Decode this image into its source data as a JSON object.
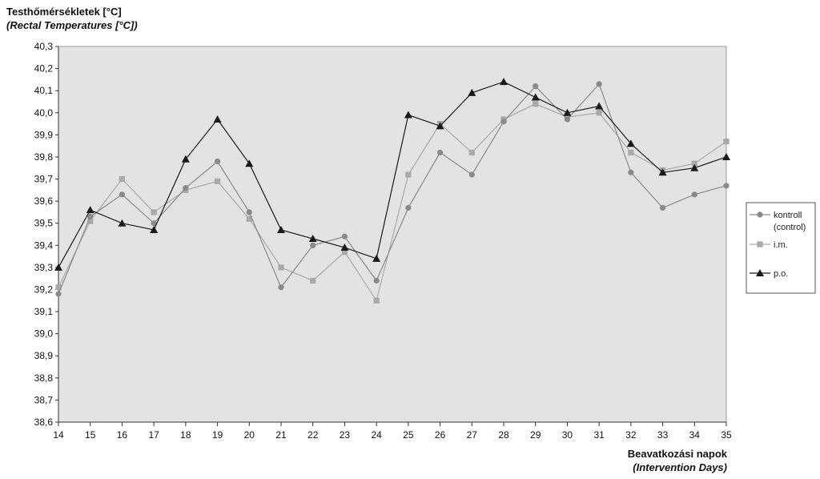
{
  "chart_data": {
    "type": "line",
    "ylabel": "Testhőmérsékletek [°C]",
    "ylabel_en": "(Rectal Temperatures [°C])",
    "xlabel": "Beavatkozási napok",
    "xlabel_en": "(Intervention Days)",
    "x": [
      14,
      15,
      16,
      17,
      18,
      19,
      20,
      21,
      22,
      23,
      24,
      25,
      26,
      27,
      28,
      29,
      30,
      31,
      32,
      33,
      34,
      35
    ],
    "ylim": [
      38.6,
      40.3
    ],
    "yticks": [
      "38,6",
      "38,7",
      "38,8",
      "38,9",
      "39,0",
      "39,1",
      "39,2",
      "39,3",
      "39,4",
      "39,5",
      "39,6",
      "39,7",
      "39,8",
      "39,9",
      "40,0",
      "40,1",
      "40,2",
      "40,3"
    ],
    "grid": false,
    "legend_position": "right",
    "background": "#e3e3e3",
    "series": [
      {
        "name": "kontroll",
        "name2": "(control)",
        "marker": "circle",
        "color": "#8a8a8a",
        "values": [
          39.18,
          39.53,
          39.63,
          39.5,
          39.66,
          39.78,
          39.55,
          39.21,
          39.4,
          39.44,
          39.24,
          39.57,
          39.82,
          39.72,
          39.96,
          40.12,
          39.97,
          40.13,
          39.73,
          39.57,
          39.63,
          39.67
        ]
      },
      {
        "name": "i.m.",
        "name2": "",
        "marker": "square",
        "color": "#a9a9a9",
        "values": [
          39.21,
          39.51,
          39.7,
          39.55,
          39.65,
          39.69,
          39.52,
          39.3,
          39.24,
          39.37,
          39.15,
          39.72,
          39.95,
          39.82,
          39.97,
          40.04,
          39.98,
          40.0,
          39.82,
          39.74,
          39.77,
          39.87
        ]
      },
      {
        "name": "p.o.",
        "name2": "",
        "marker": "triangle",
        "color": "#1a1a1a",
        "values": [
          39.3,
          39.56,
          39.5,
          39.47,
          39.79,
          39.97,
          39.77,
          39.47,
          39.43,
          39.39,
          39.34,
          39.99,
          39.94,
          40.09,
          40.14,
          40.07,
          40.0,
          40.03,
          39.86,
          39.73,
          39.75,
          39.8
        ]
      }
    ]
  }
}
